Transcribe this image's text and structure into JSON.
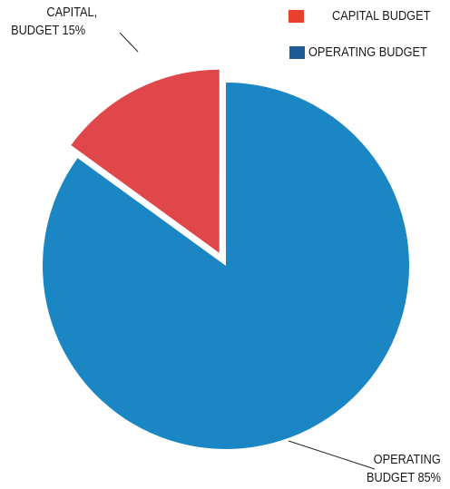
{
  "chart_data": {
    "type": "pie",
    "slices": [
      {
        "label": "OPERATING BUDGET",
        "value": 85,
        "color": "#1b86c4"
      },
      {
        "label": "CAPITAL BUDGET",
        "value": 15,
        "color": "#e0474a"
      }
    ],
    "data_labels": {
      "capital_line1": "CAPITAL,",
      "capital_line2": "BUDGET 15%",
      "operating_line1": "OPERATING",
      "operating_line2": "BUDGET 85%"
    },
    "legend": {
      "placement": "top-right",
      "items": [
        {
          "label": "CAPITAL BUDGET",
          "color": "#e8402a"
        },
        {
          "label": "OPERATING BUDGET",
          "color": "#1d5b94"
        }
      ]
    }
  }
}
